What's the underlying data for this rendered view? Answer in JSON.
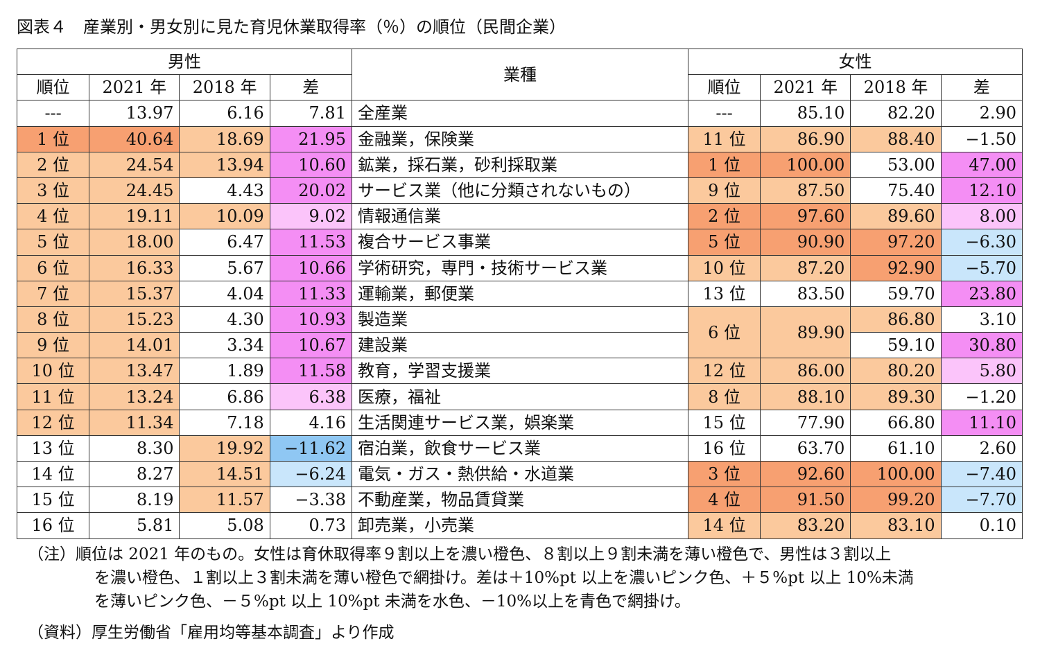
{
  "title": "図表４　産業別・男女別に見た育児休業取得率（％）の順位（民間企業）",
  "headers": {
    "male": "男性",
    "female": "女性",
    "industry": "業種",
    "rank": "順位",
    "y2021": "2021 年",
    "y2018": "2018 年",
    "diff": "差"
  },
  "colors": {
    "dark_orange": "#f7a071",
    "light_orange": "#fbc99d",
    "dark_pink": "#f48ef4",
    "light_pink": "#fbc4fa",
    "blue": "#8fc7f3",
    "light_blue": "#c9e6fb"
  },
  "rows": [
    {
      "m_rank": "---",
      "m_2021": "13.97",
      "m_2018": "6.16",
      "m_diff": "7.81",
      "industry": "全産業",
      "f_rank": "---",
      "f_2021": "85.10",
      "f_2018": "82.20",
      "f_diff": "2.90"
    },
    {
      "m_rank": "1 位",
      "m_2021": "40.64",
      "m_2018": "18.69",
      "m_diff": "21.95",
      "industry": "金融業，保険業",
      "f_rank": "11 位",
      "f_2021": "86.90",
      "f_2018": "88.40",
      "f_diff": "−1.50"
    },
    {
      "m_rank": "2 位",
      "m_2021": "24.54",
      "m_2018": "13.94",
      "m_diff": "10.60",
      "industry": "鉱業，採石業，砂利採取業",
      "f_rank": "1 位",
      "f_2021": "100.00",
      "f_2018": "53.00",
      "f_diff": "47.00"
    },
    {
      "m_rank": "3 位",
      "m_2021": "24.45",
      "m_2018": "4.43",
      "m_diff": "20.02",
      "industry": "サービス業（他に分類されないもの）",
      "f_rank": "9 位",
      "f_2021": "87.50",
      "f_2018": "75.40",
      "f_diff": "12.10"
    },
    {
      "m_rank": "4 位",
      "m_2021": "19.11",
      "m_2018": "10.09",
      "m_diff": "9.02",
      "industry": "情報通信業",
      "f_rank": "2 位",
      "f_2021": "97.60",
      "f_2018": "89.60",
      "f_diff": "8.00"
    },
    {
      "m_rank": "5 位",
      "m_2021": "18.00",
      "m_2018": "6.47",
      "m_diff": "11.53",
      "industry": "複合サービス事業",
      "f_rank": "5 位",
      "f_2021": "90.90",
      "f_2018": "97.20",
      "f_diff": "−6.30"
    },
    {
      "m_rank": "6 位",
      "m_2021": "16.33",
      "m_2018": "5.67",
      "m_diff": "10.66",
      "industry": "学術研究，専門・技術サービス業",
      "f_rank": "10 位",
      "f_2021": "87.20",
      "f_2018": "92.90",
      "f_diff": "−5.70"
    },
    {
      "m_rank": "7 位",
      "m_2021": "15.37",
      "m_2018": "4.04",
      "m_diff": "11.33",
      "industry": "運輸業，郵便業",
      "f_rank": "13 位",
      "f_2021": "83.50",
      "f_2018": "59.70",
      "f_diff": "23.80"
    },
    {
      "m_rank": "8 位",
      "m_2021": "15.23",
      "m_2018": "4.30",
      "m_diff": "10.93",
      "industry": "製造業",
      "f_rank": "6 位",
      "f_2021": "89.90",
      "f_2018": "86.80",
      "f_diff": "3.10"
    },
    {
      "m_rank": "9 位",
      "m_2021": "14.01",
      "m_2018": "3.34",
      "m_diff": "10.67",
      "industry": "建設業",
      "f_2018": "59.10",
      "f_diff": "30.80"
    },
    {
      "m_rank": "10 位",
      "m_2021": "13.47",
      "m_2018": "1.89",
      "m_diff": "11.58",
      "industry": "教育，学習支援業",
      "f_rank": "12 位",
      "f_2021": "86.00",
      "f_2018": "80.20",
      "f_diff": "5.80"
    },
    {
      "m_rank": "11 位",
      "m_2021": "13.24",
      "m_2018": "6.86",
      "m_diff": "6.38",
      "industry": "医療，福祉",
      "f_rank": "8 位",
      "f_2021": "88.10",
      "f_2018": "89.30",
      "f_diff": "−1.20"
    },
    {
      "m_rank": "12 位",
      "m_2021": "11.34",
      "m_2018": "7.18",
      "m_diff": "4.16",
      "industry": "生活関連サービス業，娯楽業",
      "f_rank": "15 位",
      "f_2021": "77.90",
      "f_2018": "66.80",
      "f_diff": "11.10"
    },
    {
      "m_rank": "13 位",
      "m_2021": "8.30",
      "m_2018": "19.92",
      "m_diff": "−11.62",
      "industry": "宿泊業，飲食サービス業",
      "f_rank": "16 位",
      "f_2021": "63.70",
      "f_2018": "61.10",
      "f_diff": "2.60"
    },
    {
      "m_rank": "14 位",
      "m_2021": "8.27",
      "m_2018": "14.51",
      "m_diff": "−6.24",
      "industry": "電気・ガス・熱供給・水道業",
      "f_rank": "3 位",
      "f_2021": "92.60",
      "f_2018": "100.00",
      "f_diff": "−7.40"
    },
    {
      "m_rank": "15 位",
      "m_2021": "8.19",
      "m_2018": "11.57",
      "m_diff": "−3.38",
      "industry": "不動産業，物品賃貸業",
      "f_rank": "4 位",
      "f_2021": "91.50",
      "f_2018": "99.20",
      "f_diff": "−7.70"
    },
    {
      "m_rank": "16 位",
      "m_2021": "5.81",
      "m_2018": "5.08",
      "m_diff": "0.73",
      "industry": "卸売業，小売業",
      "f_rank": "14 位",
      "f_2021": "83.20",
      "f_2018": "83.10",
      "f_diff": "0.10"
    }
  ],
  "note": {
    "line1": "（注）順位は 2021 年のもの。女性は育休取得率９割以上を濃い橙色、８割以上９割未満を薄い橙色で、男性は３割以上",
    "line2": "を濃い橙色、１割以上３割未満を薄い橙色で網掛け。差は＋10%pt 以上を濃いピンク色、＋５%pt 以上 10%未満",
    "line3": "を薄いピンク色、－５%pt 以上 10%pt 未満を水色、－10%以上を青色で網掛け。"
  },
  "source": "（資料）厚生労働省「雇用均等基本調査」より作成"
}
